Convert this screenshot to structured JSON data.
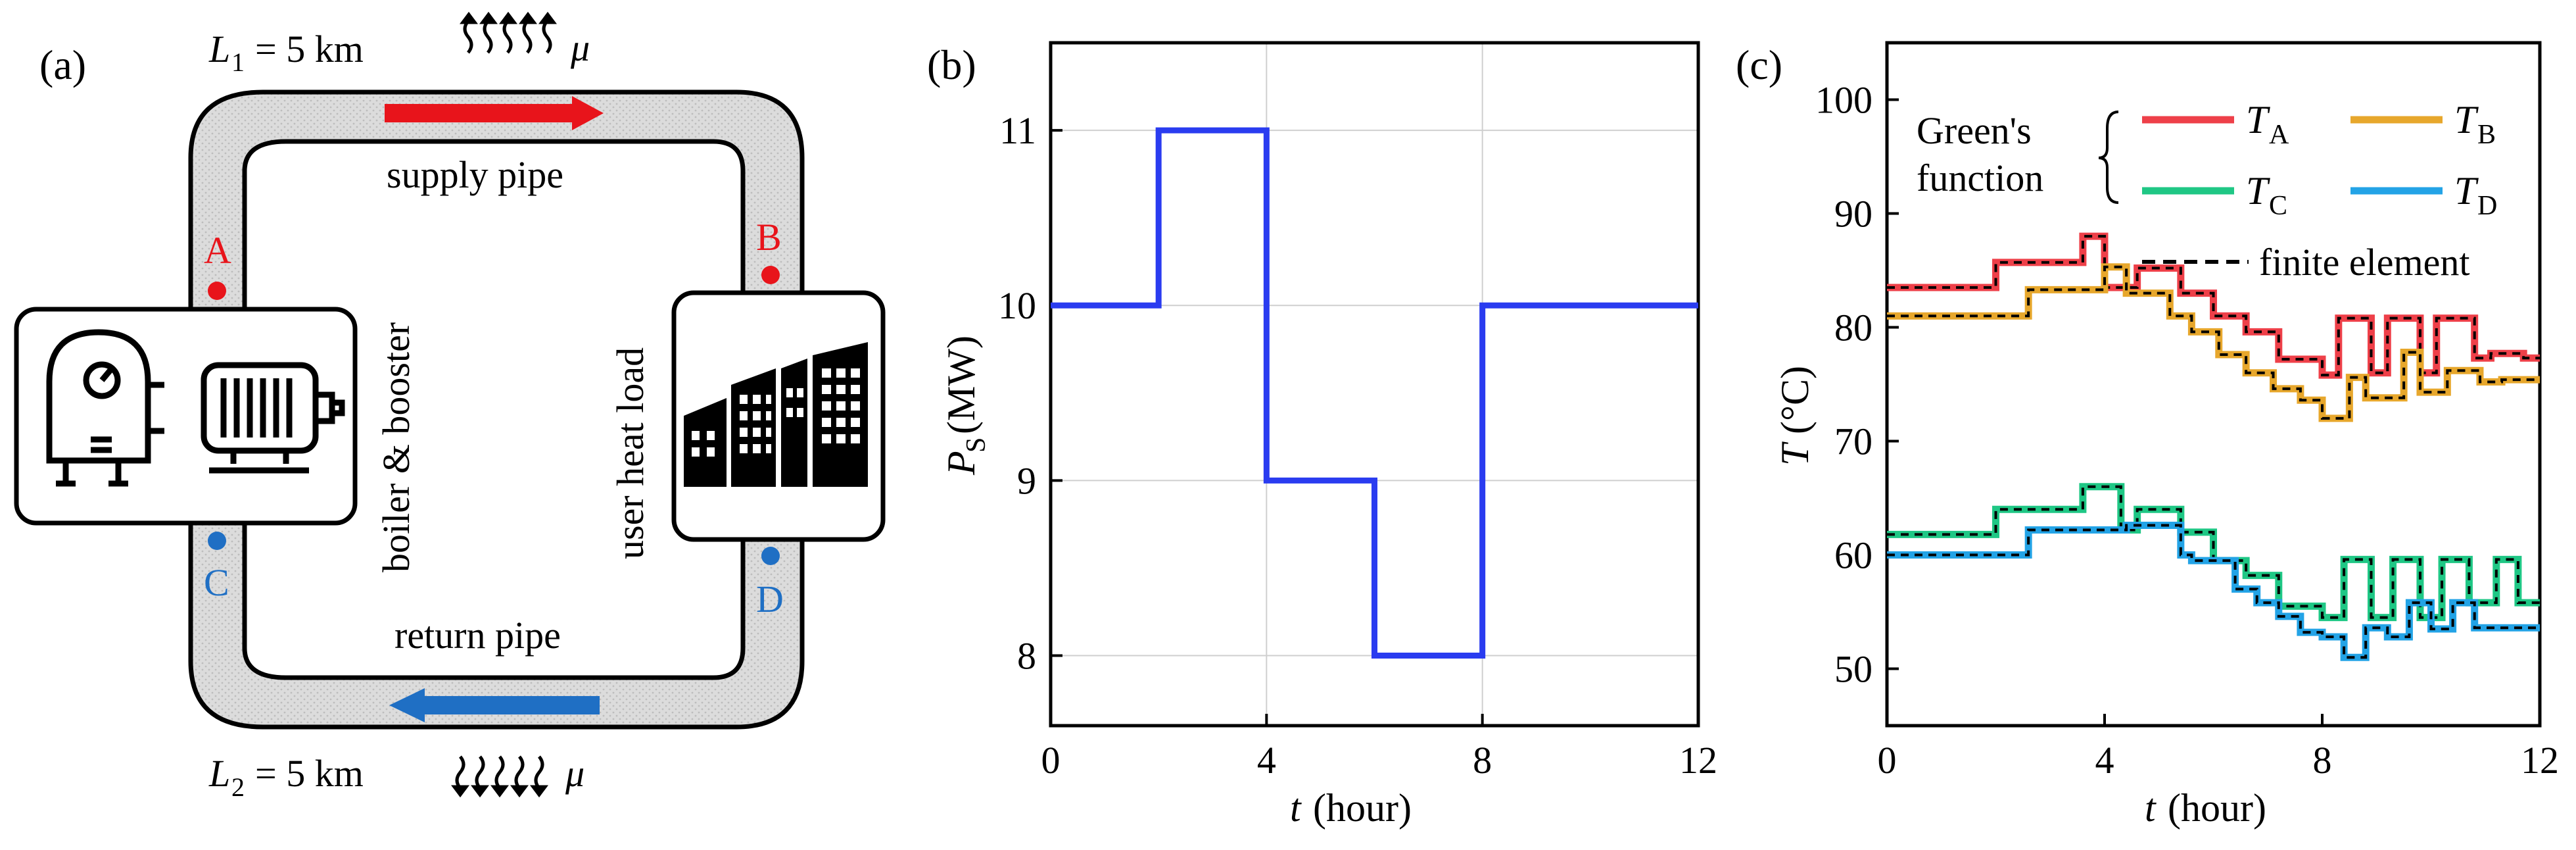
{
  "panel_a": {
    "label": "(a)",
    "l1_label": "L",
    "l1_sub": "1",
    "l1_value": "= 5 km",
    "mu_top": "μ",
    "supply": "supply pipe",
    "return": "return pipe",
    "boiler": "boiler & booster",
    "user": "user heat load",
    "l2_label": "L",
    "l2_sub": "2",
    "l2_value": "= 5 km",
    "mu_bottom": "μ",
    "points": {
      "A": "A",
      "B": "B",
      "C": "C",
      "D": "D"
    },
    "colors": {
      "supply": "#e8141b",
      "return": "#1f6fc4",
      "pipe_fill": "#d9d9d9"
    }
  },
  "panel_b": {
    "label": "(b)",
    "ylabel_main": "P",
    "ylabel_sub": "S",
    "ylabel_unit": "(MW)",
    "xlabel_main": "t",
    "xlabel_unit": "(hour)",
    "xticks": [
      "0",
      "4",
      "8",
      "12"
    ],
    "yticks": [
      "8",
      "9",
      "10",
      "11"
    ]
  },
  "panel_c": {
    "label": "(c)",
    "ylabel_main": "T",
    "ylabel_unit": "(°C)",
    "xlabel_main": "t",
    "xlabel_unit": "(hour)",
    "xticks": [
      "0",
      "4",
      "8",
      "12"
    ],
    "yticks": [
      "50",
      "60",
      "70",
      "80",
      "90",
      "100"
    ],
    "legend_group_line1": "Green's",
    "legend_group_line2": "function",
    "legend_dashed": "finite element",
    "legend_items": [
      {
        "main": "T",
        "sub": "A",
        "color": "#ee4049"
      },
      {
        "main": "T",
        "sub": "B",
        "color": "#e7a72c"
      },
      {
        "main": "T",
        "sub": "C",
        "color": "#1fc785"
      },
      {
        "main": "T",
        "sub": "D",
        "color": "#23a3e6"
      }
    ]
  },
  "chart_data": [
    {
      "type": "line",
      "panel": "b",
      "series": [
        {
          "x": [
            0,
            2,
            2,
            4,
            4,
            6,
            6,
            8,
            8,
            12
          ],
          "values": [
            10,
            10,
            11,
            11,
            9,
            9,
            8,
            8,
            10,
            10
          ],
          "color": "#2a3cf0"
        }
      ],
      "xlim": [
        0,
        12
      ],
      "ylim": [
        7.6,
        11.5
      ],
      "grid": true
    },
    {
      "type": "line",
      "panel": "c",
      "series": [
        {
          "name": "T_A",
          "color": "#ee4049",
          "x": [
            0,
            2,
            2,
            3.6,
            3.6,
            4,
            4,
            4.6,
            4.6,
            5.4,
            5.4,
            6,
            6,
            6.6,
            6.6,
            7.2,
            7.2,
            8,
            8,
            8.3,
            8.3,
            8.9,
            8.9,
            9.2,
            9.2,
            9.8,
            9.8,
            10.1,
            10.1,
            10.8,
            10.8,
            11.1,
            11.1,
            11.7,
            11.7,
            12
          ],
          "values": [
            83.5,
            83.5,
            85.7,
            85.7,
            88,
            88,
            83.5,
            83.5,
            85.2,
            85.2,
            83,
            83,
            81,
            81,
            79.6,
            79.6,
            77.2,
            77.2,
            75.8,
            75.8,
            80.8,
            80.8,
            76,
            76,
            80.8,
            80.8,
            76,
            76,
            80.8,
            80.8,
            77.3,
            77.3,
            77.7,
            77.7,
            77.3,
            77.3
          ]
        },
        {
          "name": "T_B",
          "color": "#e7a72c",
          "x": [
            0,
            2.6,
            2.6,
            4,
            4,
            4.4,
            4.4,
            5.2,
            5.2,
            5.6,
            5.6,
            6.1,
            6.1,
            6.6,
            6.6,
            7.1,
            7.1,
            7.6,
            7.6,
            8,
            8,
            8.5,
            8.5,
            8.8,
            8.8,
            9.5,
            9.5,
            9.8,
            9.8,
            10.3,
            10.3,
            10.9,
            10.9,
            11.3,
            11.3,
            12
          ],
          "values": [
            81,
            81,
            83.3,
            83.3,
            85.3,
            85.3,
            83,
            83,
            81,
            81,
            79.6,
            79.6,
            77.6,
            77.6,
            76,
            76,
            74.6,
            74.6,
            73.6,
            73.6,
            72,
            72,
            75.6,
            75.6,
            73.8,
            73.8,
            77.8,
            77.8,
            74.3,
            74.3,
            76.2,
            76.2,
            75.2,
            75.2,
            75.4,
            75.4
          ]
        },
        {
          "name": "T_C",
          "color": "#1fc785",
          "x": [
            0,
            2,
            2,
            3.6,
            3.6,
            4.3,
            4.3,
            4.6,
            4.6,
            5.4,
            5.4,
            6,
            6,
            6.6,
            6.6,
            7.2,
            7.2,
            8,
            8,
            8.4,
            8.4,
            8.9,
            8.9,
            9.3,
            9.3,
            9.8,
            9.8,
            10.2,
            10.2,
            10.7,
            10.7,
            11.2,
            11.2,
            11.6,
            11.6,
            12
          ],
          "values": [
            61.8,
            61.8,
            64,
            64,
            66,
            66,
            62.2,
            62.2,
            64,
            64,
            62,
            62,
            59.5,
            59.5,
            58.2,
            58.2,
            55.5,
            55.5,
            54.5,
            54.5,
            59.6,
            59.6,
            54.5,
            54.5,
            59.6,
            59.6,
            54.5,
            54.5,
            59.6,
            59.6,
            55.8,
            55.8,
            59.6,
            59.6,
            55.8,
            55.8
          ]
        },
        {
          "name": "T_D",
          "color": "#23a3e6",
          "x": [
            0,
            2.6,
            2.6,
            4.4,
            4.4,
            5.4,
            5.4,
            5.6,
            5.6,
            6.4,
            6.4,
            6.8,
            6.8,
            7.2,
            7.2,
            7.6,
            7.6,
            8,
            8,
            8.4,
            8.4,
            8.8,
            8.8,
            9.2,
            9.2,
            9.6,
            9.6,
            10,
            10,
            10.4,
            10.4,
            10.8,
            10.8,
            11.2,
            11.2,
            12
          ],
          "values": [
            60,
            60,
            62.2,
            62.2,
            62.6,
            62.6,
            60,
            60,
            59.5,
            59.5,
            57,
            57,
            55.8,
            55.8,
            54.6,
            54.6,
            53.2,
            53.2,
            52.8,
            52.8,
            51,
            51,
            53.6,
            53.6,
            52.8,
            52.8,
            55.8,
            55.8,
            53.5,
            53.5,
            55.8,
            55.8,
            53.6,
            53.6,
            53.6,
            53.6
          ]
        }
      ],
      "overlay": "finite element (black dashed)",
      "xlim": [
        0,
        12
      ],
      "ylim": [
        45,
        105
      ],
      "grid": false
    }
  ]
}
